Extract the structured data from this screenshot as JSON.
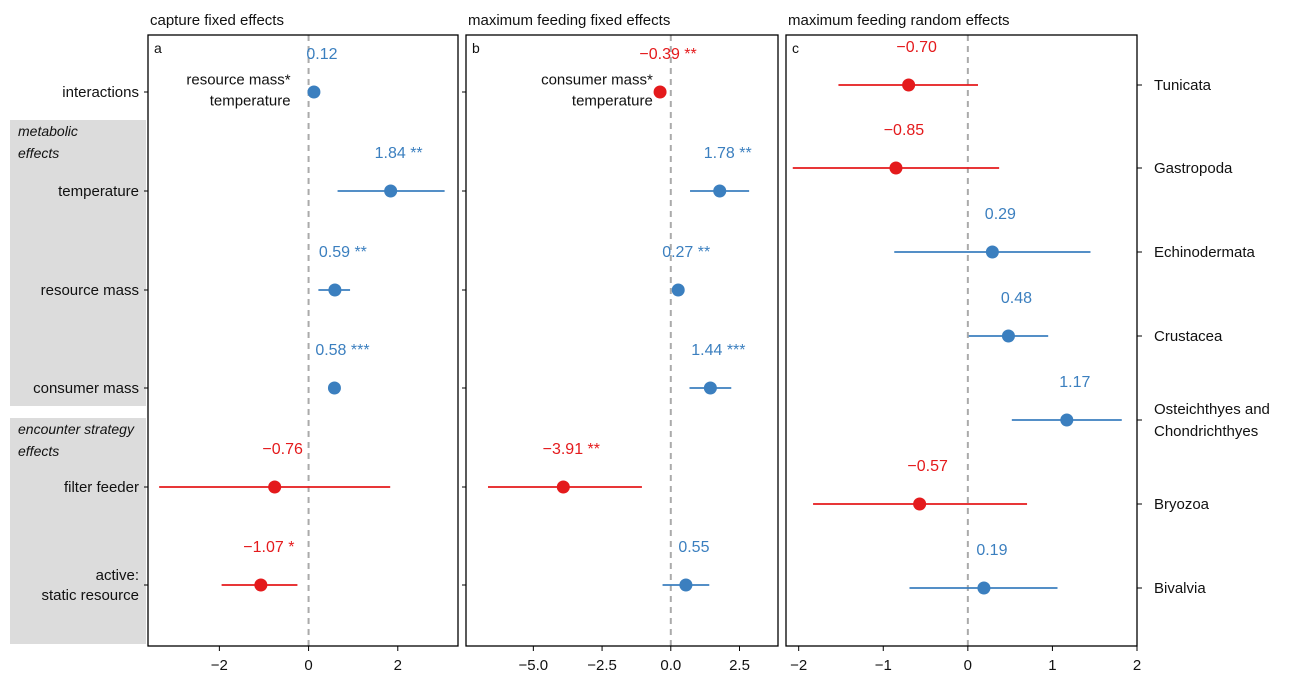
{
  "colors": {
    "positive": "#3b7fbf",
    "negative": "#e41a1c",
    "frame": "#000000",
    "zero_line": "#aaaaaa",
    "group_band": "#dcdcdc"
  },
  "row_labels": [
    "interactions",
    "temperature",
    "resource mass",
    "consumer mass",
    "filter feeder",
    "active:|static resource"
  ],
  "group_labels": [
    {
      "name": "metabolic|effects",
      "rows": [
        1,
        3
      ]
    },
    {
      "name": "encounter strategy|effects",
      "rows": [
        4,
        5
      ]
    }
  ],
  "chart_data": [
    {
      "type": "forest",
      "panel": "a",
      "title": "capture fixed effects",
      "xlim": [
        -3.6,
        3.35
      ],
      "xticks": [
        -2,
        0,
        2
      ],
      "xtick_labels": [
        "−2",
        "0",
        "2"
      ],
      "zero_line": true,
      "note": {
        "text": "resource mass*|temperature",
        "row": 0
      },
      "points": [
        {
          "row": 0,
          "estimate": 0.12,
          "lo": 0.12,
          "hi": 0.12,
          "label": "0.12",
          "color": "#3b7fbf"
        },
        {
          "row": 1,
          "estimate": 1.84,
          "lo": 0.65,
          "hi": 3.05,
          "label": "1.84 **",
          "color": "#3b7fbf"
        },
        {
          "row": 2,
          "estimate": 0.59,
          "lo": 0.22,
          "hi": 0.93,
          "label": "0.59 **",
          "color": "#3b7fbf"
        },
        {
          "row": 3,
          "estimate": 0.58,
          "lo": 0.48,
          "hi": 0.68,
          "label": "0.58 ***",
          "color": "#3b7fbf"
        },
        {
          "row": 4,
          "estimate": -0.76,
          "lo": -3.35,
          "hi": 1.83,
          "label": "−0.76",
          "color": "#e41a1c"
        },
        {
          "row": 5,
          "estimate": -1.07,
          "lo": -1.95,
          "hi": -0.25,
          "label": "−1.07 *",
          "color": "#e41a1c"
        }
      ]
    },
    {
      "type": "forest",
      "panel": "b",
      "title": "maximum feeding fixed effects",
      "xlim": [
        -7.45,
        3.9
      ],
      "xticks": [
        -5.0,
        -2.5,
        0.0,
        2.5
      ],
      "xtick_labels": [
        "−5.0",
        "−2.5",
        "0.0",
        "2.5"
      ],
      "zero_line": true,
      "note": {
        "text": "consumer mass*|temperature",
        "row": 0
      },
      "points": [
        {
          "row": 0,
          "estimate": -0.39,
          "lo": -0.39,
          "hi": -0.39,
          "label": "−0.39 **",
          "color": "#e41a1c"
        },
        {
          "row": 1,
          "estimate": 1.78,
          "lo": 0.7,
          "hi": 2.85,
          "label": "1.78 **",
          "color": "#3b7fbf"
        },
        {
          "row": 2,
          "estimate": 0.27,
          "lo": 0.27,
          "hi": 0.27,
          "label": "0.27 **",
          "color": "#3b7fbf"
        },
        {
          "row": 3,
          "estimate": 1.44,
          "lo": 0.68,
          "hi": 2.2,
          "label": "1.44 ***",
          "color": "#3b7fbf"
        },
        {
          "row": 4,
          "estimate": -3.91,
          "lo": -6.65,
          "hi": -1.05,
          "label": "−3.91 **",
          "color": "#e41a1c"
        },
        {
          "row": 5,
          "estimate": 0.55,
          "lo": -0.3,
          "hi": 1.4,
          "label": "0.55",
          "color": "#3b7fbf"
        }
      ]
    },
    {
      "type": "forest",
      "panel": "c",
      "title": "maximum feeding random effects",
      "xlim": [
        -2.15,
        2.0
      ],
      "xticks": [
        -2,
        -1,
        0,
        1,
        2
      ],
      "xtick_labels": [
        "−2",
        "−1",
        "0",
        "1",
        "2"
      ],
      "zero_line": true,
      "right_labels": [
        "Tunicata",
        "Gastropoda",
        "Echinodermata",
        "Crustacea",
        "Osteichthyes and|Chondrichthyes",
        "Bryozoa",
        "Bivalvia"
      ],
      "points": [
        {
          "row": 0,
          "estimate": -0.7,
          "lo": -1.53,
          "hi": 0.12,
          "label": "−0.70",
          "color": "#e41a1c"
        },
        {
          "row": 1,
          "estimate": -0.85,
          "lo": -2.07,
          "hi": 0.37,
          "label": "−0.85",
          "color": "#e41a1c"
        },
        {
          "row": 2,
          "estimate": 0.29,
          "lo": -0.87,
          "hi": 1.45,
          "label": "0.29",
          "color": "#3b7fbf"
        },
        {
          "row": 3,
          "estimate": 0.48,
          "lo": 0.01,
          "hi": 0.95,
          "label": "0.48",
          "color": "#3b7fbf"
        },
        {
          "row": 4,
          "estimate": 1.17,
          "lo": 0.52,
          "hi": 1.82,
          "label": "1.17",
          "color": "#3b7fbf"
        },
        {
          "row": 5,
          "estimate": -0.57,
          "lo": -1.83,
          "hi": 0.7,
          "label": "−0.57",
          "color": "#e41a1c"
        },
        {
          "row": 6,
          "estimate": 0.19,
          "lo": -0.69,
          "hi": 1.06,
          "label": "0.19",
          "color": "#3b7fbf"
        }
      ]
    }
  ]
}
